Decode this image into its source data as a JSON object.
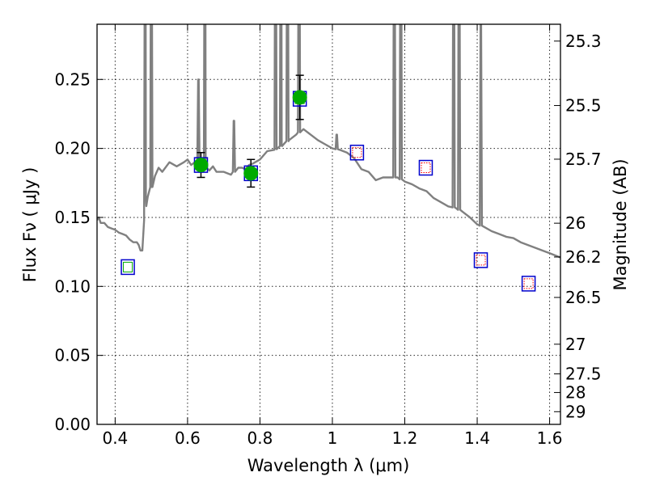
{
  "chart_data": {
    "type": "scatter",
    "title": "",
    "xlabel": "Wavelength  λ (μm)",
    "ylabel": "Flux  Fν  ( μJy )",
    "y2label": "Magnitude (AB)",
    "xlim": [
      0.35,
      1.63
    ],
    "ylim": [
      0.0,
      0.29
    ],
    "grid": true,
    "x_ticks": [
      0.4,
      0.6,
      0.8,
      1.0,
      1.2,
      1.4,
      1.6
    ],
    "x_tick_labels": [
      "0.4",
      "0.6",
      "0.8",
      "1",
      "1.2",
      "1.4",
      "1.6"
    ],
    "y_ticks": [
      0.0,
      0.05,
      0.1,
      0.15,
      0.2,
      0.25
    ],
    "y_tick_labels": [
      "0.00",
      "0.05",
      "0.10",
      "0.15",
      "0.20",
      "0.25"
    ],
    "y2_ticks": [
      {
        "label": "25.3",
        "flux": 0.2778
      },
      {
        "label": "25.5",
        "flux": 0.2311
      },
      {
        "label": "25.7",
        "flux": 0.1922
      },
      {
        "label": "26",
        "flux": 0.1458
      },
      {
        "label": "26.2",
        "flux": 0.1213
      },
      {
        "label": "26.5",
        "flux": 0.092
      },
      {
        "label": "27",
        "flux": 0.0581
      },
      {
        "label": "27.5",
        "flux": 0.0366
      },
      {
        "label": "28",
        "flux": 0.0231
      },
      {
        "label": "29",
        "flux": 0.0092
      }
    ],
    "series": [
      {
        "kind": "model_spectrum",
        "color": "#808080",
        "x": [
          0.35,
          0.355,
          0.36,
          0.37,
          0.38,
          0.39,
          0.4,
          0.41,
          0.42,
          0.43,
          0.44,
          0.45,
          0.46,
          0.465,
          0.47,
          0.475,
          0.48,
          0.485,
          0.49,
          0.5,
          0.51,
          0.52,
          0.53,
          0.55,
          0.57,
          0.59,
          0.6,
          0.61,
          0.62,
          0.625,
          0.63,
          0.635,
          0.64,
          0.65,
          0.66,
          0.67,
          0.68,
          0.7,
          0.72,
          0.74,
          0.75,
          0.76,
          0.77,
          0.78,
          0.8,
          0.82,
          0.84,
          0.86,
          0.88,
          0.9,
          0.92,
          0.94,
          0.96,
          0.98,
          1.0,
          1.02,
          1.04,
          1.06,
          1.08,
          1.1,
          1.12,
          1.14,
          1.16,
          1.18,
          1.2,
          1.22,
          1.24,
          1.26,
          1.28,
          1.3,
          1.32,
          1.34,
          1.36,
          1.38,
          1.4,
          1.42,
          1.44,
          1.46,
          1.48,
          1.5,
          1.52,
          1.54,
          1.56,
          1.58,
          1.6,
          1.63
        ],
        "y": [
          0.148,
          0.15,
          0.146,
          0.146,
          0.143,
          0.142,
          0.141,
          0.139,
          0.138,
          0.137,
          0.134,
          0.132,
          0.132,
          0.13,
          0.126,
          0.126,
          0.148,
          0.165,
          0.165,
          0.172,
          0.18,
          0.186,
          0.183,
          0.19,
          0.187,
          0.19,
          0.192,
          0.188,
          0.19,
          0.19,
          0.193,
          0.193,
          0.188,
          0.186,
          0.184,
          0.187,
          0.183,
          0.183,
          0.181,
          0.186,
          0.186,
          0.185,
          0.188,
          0.189,
          0.192,
          0.198,
          0.199,
          0.202,
          0.206,
          0.21,
          0.214,
          0.21,
          0.206,
          0.203,
          0.2,
          0.199,
          0.197,
          0.193,
          0.185,
          0.183,
          0.177,
          0.179,
          0.179,
          0.179,
          0.176,
          0.174,
          0.171,
          0.169,
          0.164,
          0.161,
          0.158,
          0.157,
          0.154,
          0.15,
          0.145,
          0.143,
          0.14,
          0.138,
          0.136,
          0.135,
          0.132,
          0.13,
          0.128,
          0.126,
          0.124,
          0.121
        ]
      },
      {
        "kind": "emission_lines",
        "color": "#808080",
        "lines": [
          {
            "x": 0.483,
            "peak": 0.4
          },
          {
            "x": 0.5,
            "peak": 0.4
          },
          {
            "x": 0.63,
            "peak": 0.25
          },
          {
            "x": 0.648,
            "peak": 0.4
          },
          {
            "x": 0.728,
            "peak": 0.22
          },
          {
            "x": 0.843,
            "peak": 0.4
          },
          {
            "x": 0.858,
            "peak": 0.4
          },
          {
            "x": 0.876,
            "peak": 0.4
          },
          {
            "x": 0.908,
            "peak": 0.4
          },
          {
            "x": 1.012,
            "peak": 0.21
          },
          {
            "x": 1.171,
            "peak": 0.4
          },
          {
            "x": 1.189,
            "peak": 0.4
          },
          {
            "x": 1.335,
            "peak": 0.4
          },
          {
            "x": 1.35,
            "peak": 0.4
          },
          {
            "x": 1.41,
            "peak": 0.29
          }
        ]
      },
      {
        "kind": "observed_photometry",
        "color": "#00aa00",
        "x": [
          0.637,
          0.775,
          0.91
        ],
        "y": [
          0.188,
          0.182,
          0.237
        ],
        "yerr": [
          0.009,
          0.01,
          0.016
        ]
      },
      {
        "kind": "model_photometry",
        "color": "#0000cc",
        "x": [
          0.435,
          0.637,
          0.775,
          0.91,
          1.068,
          1.258,
          1.41,
          1.542
        ],
        "y": [
          0.114,
          0.188,
          0.182,
          0.236,
          0.197,
          0.186,
          0.119,
          0.102
        ],
        "inner_color": [
          "#00aa00",
          "#00aa00",
          "#00aa00",
          "#00aa00",
          "#ff0000",
          "#ff0000",
          "#ff0000",
          "#ff0000"
        ]
      }
    ]
  }
}
